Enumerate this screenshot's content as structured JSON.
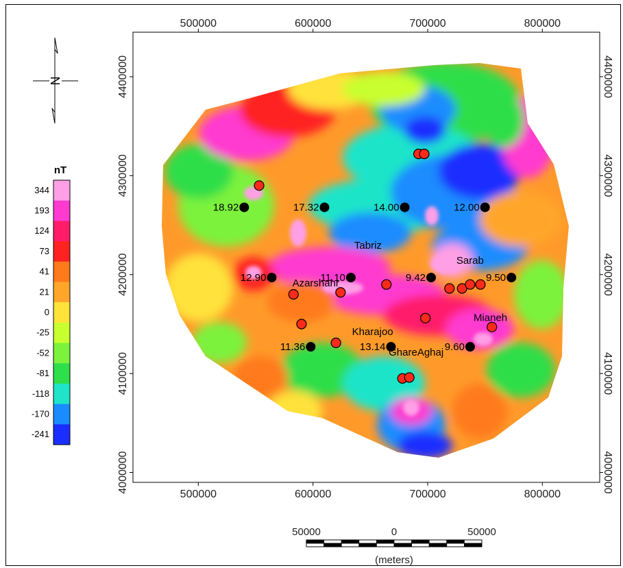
{
  "map": {
    "x_axis_ticks": [
      "500000",
      "600000",
      "700000",
      "800000"
    ],
    "y_axis_ticks": [
      "4000000",
      "4100000",
      "4200000",
      "4300000",
      "4400000"
    ],
    "x_tick_values": [
      500000,
      600000,
      700000,
      800000
    ],
    "y_tick_values": [
      4000000,
      4100000,
      4200000,
      4300000,
      4400000
    ],
    "x_range": [
      443000,
      850000
    ],
    "y_range": [
      3990000,
      4445000
    ]
  },
  "legend": {
    "unit": "nT",
    "levels": [
      "344",
      "193",
      "124",
      "73",
      "41",
      "21",
      "0",
      "-25",
      "-52",
      "-81",
      "-118",
      "-170",
      "-241"
    ],
    "colors": [
      "#ff9fe6",
      "#ff3ad0",
      "#ff1d6a",
      "#ff2222",
      "#ff7a1a",
      "#ffa62a",
      "#ffe23a",
      "#c8ff2e",
      "#7cf23c",
      "#2ede4a",
      "#1fe4c9",
      "#1a8cff",
      "#1a2fff"
    ]
  },
  "stations": [
    {
      "label": "18.92",
      "x": 540000,
      "y": 4268000
    },
    {
      "label": "17.32",
      "x": 610000,
      "y": 4268000
    },
    {
      "label": "14.00",
      "x": 680000,
      "y": 4268000
    },
    {
      "label": "12.00",
      "x": 750000,
      "y": 4268000
    },
    {
      "label": "12.90",
      "x": 564000,
      "y": 4197000
    },
    {
      "label": "11.10",
      "x": 633000,
      "y": 4197000
    },
    {
      "label": "9.42",
      "x": 703000,
      "y": 4197000
    },
    {
      "label": "9.50",
      "x": 773000,
      "y": 4197000
    },
    {
      "label": "11.36",
      "x": 598000,
      "y": 4127000
    },
    {
      "label": "13.14",
      "x": 668000,
      "y": 4127000
    },
    {
      "label": "9.60",
      "x": 737000,
      "y": 4127000
    }
  ],
  "cities": [
    {
      "name": "Tabriz",
      "x": 636000,
      "y": 4226000
    },
    {
      "name": "Sarab",
      "x": 725000,
      "y": 4211000
    },
    {
      "name": "Azarshahr",
      "x": 582000,
      "y": 4188000
    },
    {
      "name": "Mianeh",
      "x": 740000,
      "y": 4153000
    },
    {
      "name": "Kharajoo",
      "x": 634000,
      "y": 4139000
    },
    {
      "name": "GhareAghaj",
      "x": 666000,
      "y": 4118000
    }
  ],
  "events": [
    {
      "x": 553000,
      "y": 4290000
    },
    {
      "x": 692000,
      "y": 4322000
    },
    {
      "x": 697000,
      "y": 4322000
    },
    {
      "x": 583000,
      "y": 4180000
    },
    {
      "x": 624000,
      "y": 4182000
    },
    {
      "x": 664000,
      "y": 4190000
    },
    {
      "x": 719000,
      "y": 4186000
    },
    {
      "x": 730000,
      "y": 4186000
    },
    {
      "x": 737000,
      "y": 4190000
    },
    {
      "x": 746000,
      "y": 4190000
    },
    {
      "x": 698000,
      "y": 4156000
    },
    {
      "x": 590000,
      "y": 4150000
    },
    {
      "x": 620000,
      "y": 4131000
    },
    {
      "x": 756000,
      "y": 4147000
    },
    {
      "x": 678000,
      "y": 4095000
    },
    {
      "x": 684000,
      "y": 4096000
    }
  ],
  "scale_bar": {
    "labels": [
      "50000",
      "0",
      "50000"
    ],
    "unit": "(meters)"
  },
  "north_arrow": {
    "letter": "N"
  }
}
